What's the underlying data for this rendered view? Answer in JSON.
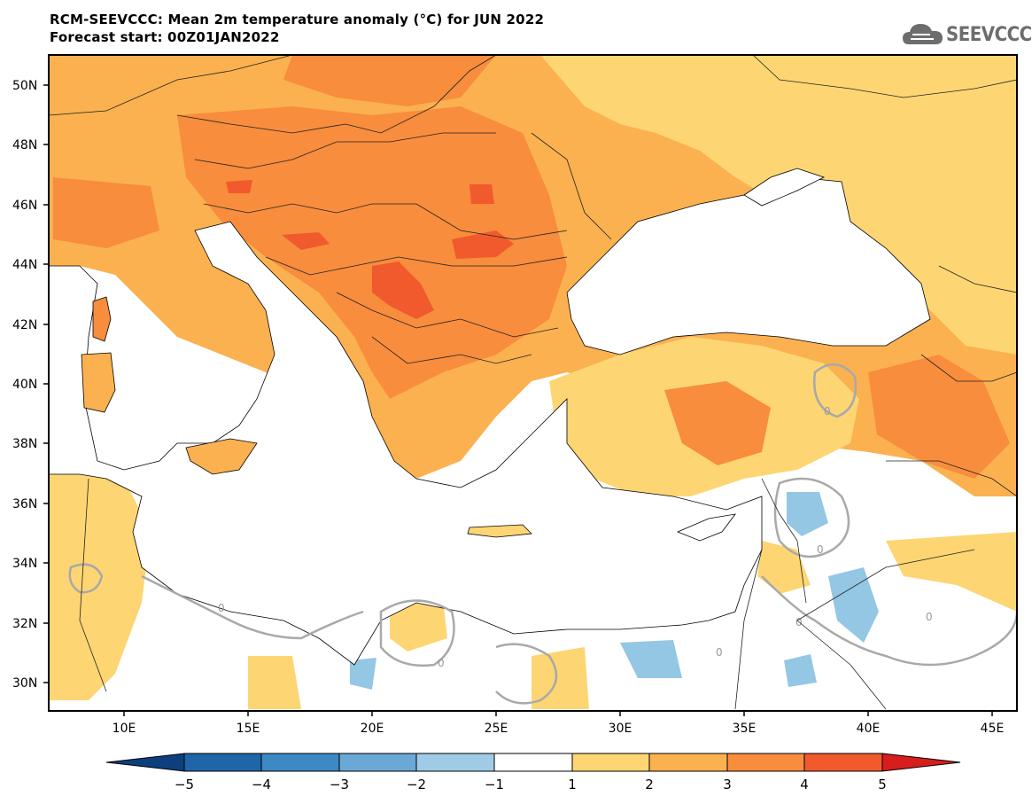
{
  "header": {
    "title": "RCM-SEEVCCC: Mean 2m temperature anomaly (°C) for JUN 2022",
    "subtitle": "Forecast start: 00Z01JAN2022"
  },
  "logo": {
    "text": "SEEVCCC",
    "icon": "cloud-icon"
  },
  "map": {
    "lat_ticks": [
      "50N",
      "48N",
      "46N",
      "44N",
      "42N",
      "40N",
      "38N",
      "36N",
      "34N",
      "32N",
      "30N"
    ],
    "lon_ticks": [
      "10E",
      "15E",
      "20E",
      "25E",
      "30E",
      "35E",
      "40E",
      "45E"
    ],
    "contour_label": "0",
    "colors": {
      "anom_0_1": "#ffffff",
      "anom_1_2": "#fdd673",
      "anom_2_3": "#fbb150",
      "anom_3_4": "#f78d3d",
      "anom_4_5": "#f15a2c",
      "neg_1_2": "#94c7e3",
      "sea": "#ffffff",
      "contour": "#a9a9a9"
    }
  },
  "colorbar": {
    "labels": [
      "−5",
      "−4",
      "−3",
      "−2",
      "−1",
      "1",
      "2",
      "3",
      "4",
      "5"
    ],
    "colors": [
      "#0c3f7c",
      "#1e66a8",
      "#3c89c4",
      "#6aa9d6",
      "#9fcbe6",
      "#ffffff",
      "#fdd673",
      "#fbb150",
      "#f78d3d",
      "#f15a2c",
      "#d81d1d"
    ]
  }
}
